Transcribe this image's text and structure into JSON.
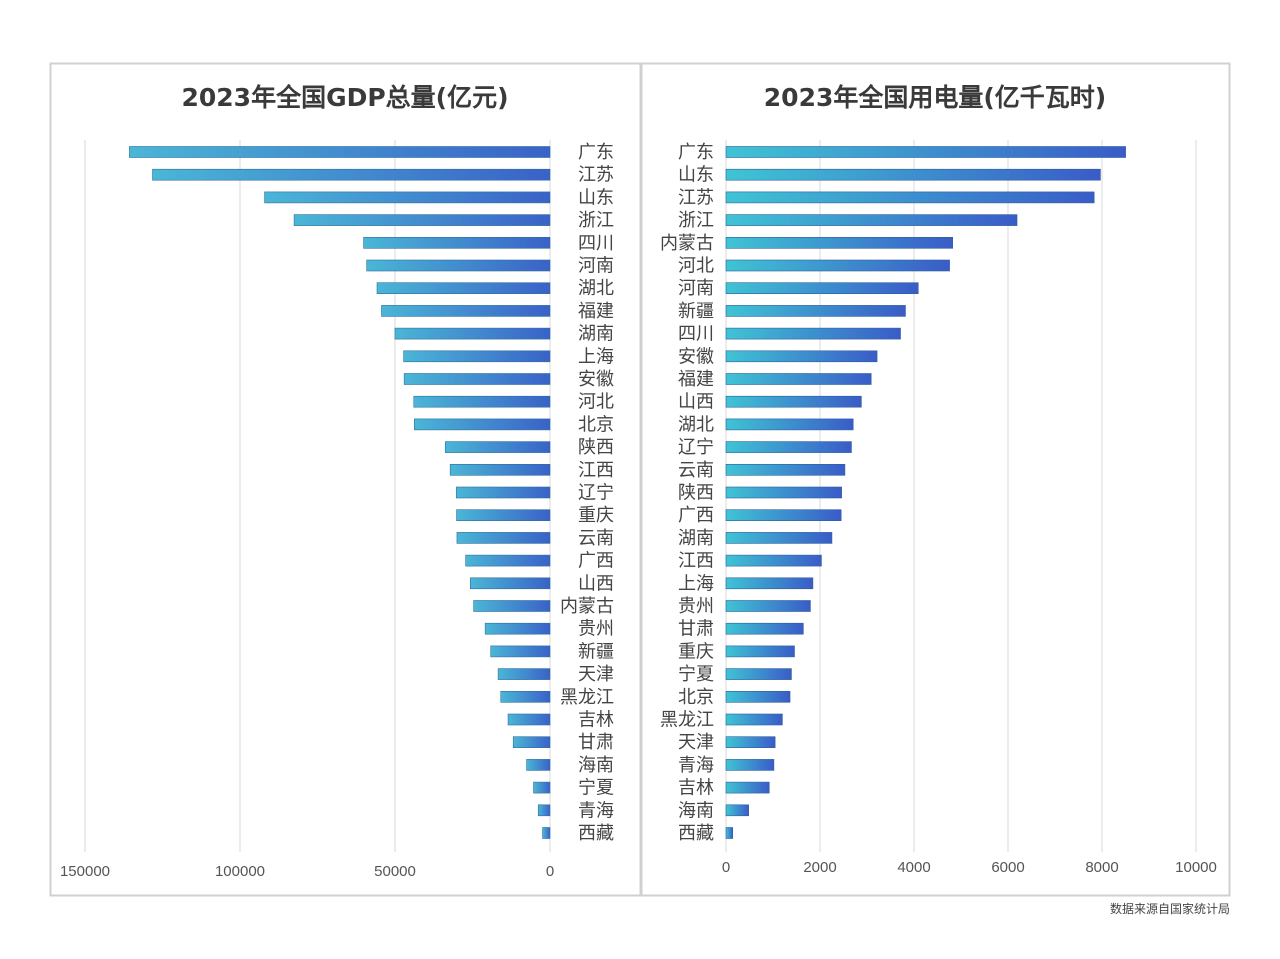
{
  "source_note": "数据来源自国家统计局",
  "chart_data": [
    {
      "type": "bar",
      "orientation": "horizontal",
      "direction": "right-to-left",
      "title": "2023年全国GDP总量(亿元)",
      "xlim": [
        0,
        150000
      ],
      "xticks": [
        150000,
        100000,
        50000,
        0
      ],
      "grid": true,
      "categories": [
        "广东",
        "江苏",
        "山东",
        "浙江",
        "四川",
        "河南",
        "湖北",
        "福建",
        "湖南",
        "上海",
        "安徽",
        "河北",
        "北京",
        "陕西",
        "江西",
        "辽宁",
        "重庆",
        "云南",
        "广西",
        "山西",
        "内蒙古",
        "贵州",
        "新疆",
        "天津",
        "黑龙江",
        "吉林",
        "甘肃",
        "海南",
        "宁夏",
        "青海",
        "西藏"
      ],
      "values": [
        135673,
        128222,
        92069,
        82553,
        60133,
        59132,
        55804,
        54355,
        50013,
        47219,
        47051,
        43944,
        43761,
        33786,
        32200,
        30209,
        30146,
        30021,
        27202,
        25699,
        24627,
        20913,
        19126,
        16737,
        15884,
        13531,
        11864,
        7551,
        5315,
        3799,
        2393
      ]
    },
    {
      "type": "bar",
      "orientation": "horizontal",
      "direction": "left-to-right",
      "title": "2023年全国用电量(亿千瓦时)",
      "xlim": [
        0,
        10000
      ],
      "xticks": [
        0,
        2000,
        4000,
        6000,
        8000,
        10000
      ],
      "grid": true,
      "categories": [
        "广东",
        "山东",
        "江苏",
        "浙江",
        "内蒙古",
        "河北",
        "河南",
        "新疆",
        "四川",
        "安徽",
        "福建",
        "山西",
        "湖北",
        "辽宁",
        "云南",
        "陕西",
        "广西",
        "湖南",
        "江西",
        "上海",
        "贵州",
        "甘肃",
        "重庆",
        "宁夏",
        "北京",
        "黑龙江",
        "天津",
        "青海",
        "吉林",
        "海南",
        "西藏"
      ],
      "values": [
        8502,
        7966,
        7833,
        6192,
        4823,
        4757,
        4090,
        3818,
        3713,
        3214,
        3089,
        2880,
        2706,
        2669,
        2530,
        2460,
        2450,
        2254,
        2030,
        1849,
        1796,
        1645,
        1457,
        1392,
        1362,
        1199,
        1045,
        1019,
        920,
        482,
        143
      ]
    }
  ]
}
